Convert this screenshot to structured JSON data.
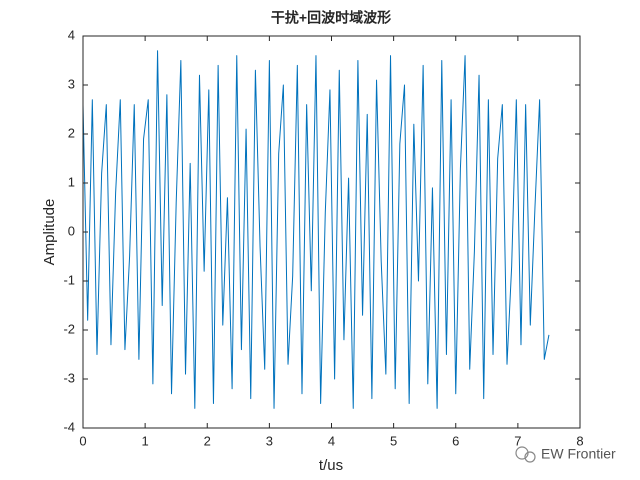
{
  "chart_data": {
    "type": "line",
    "title": "干扰+回波时域波形",
    "xlabel": "t/us",
    "ylabel": "Amplitude",
    "color": "#0072bd",
    "x": [
      0,
      0.075,
      0.15,
      0.225,
      0.3,
      0.375,
      0.45,
      0.525,
      0.6,
      0.675,
      0.75,
      0.825,
      0.9,
      0.975,
      1.05,
      1.125,
      1.2,
      1.275,
      1.35,
      1.425,
      1.5,
      1.575,
      1.65,
      1.725,
      1.8,
      1.875,
      1.95,
      2.025,
      2.1,
      2.175,
      2.25,
      2.325,
      2.4,
      2.475,
      2.55,
      2.625,
      2.7,
      2.775,
      2.85,
      2.925,
      3,
      3.075,
      3.15,
      3.225,
      3.3,
      3.375,
      3.45,
      3.525,
      3.6,
      3.675,
      3.75,
      3.825,
      3.9,
      3.975,
      4.05,
      4.125,
      4.2,
      4.275,
      4.35,
      4.425,
      4.5,
      4.575,
      4.65,
      4.725,
      4.8,
      4.875,
      4.95,
      5.025,
      5.1,
      5.175,
      5.25,
      5.325,
      5.4,
      5.475,
      5.55,
      5.625,
      5.7,
      5.775,
      5.85,
      5.925,
      6,
      6.075,
      6.15,
      6.225,
      6.3,
      6.375,
      6.45,
      6.525,
      6.6,
      6.675,
      6.75,
      6.825,
      6.9,
      6.975,
      7.05,
      7.125,
      7.2,
      7.275,
      7.35,
      7.425,
      7.5
    ],
    "values": [
      2.6,
      -1.8,
      2.7,
      -2.5,
      1.2,
      2.6,
      -2.3,
      0.8,
      2.7,
      -2.4,
      -0.5,
      2.6,
      -2.6,
      1.9,
      2.7,
      -3.1,
      3.7,
      -1.5,
      2.8,
      -3.3,
      0.6,
      3.5,
      -2.9,
      1.4,
      -3.6,
      3.2,
      -0.8,
      2.9,
      -3.5,
      3.4,
      -1.9,
      0.7,
      -3.2,
      3.6,
      -2.4,
      2.1,
      -3.4,
      3.3,
      -0.3,
      -2.8,
      3.5,
      -3.6,
      1.6,
      3.0,
      -2.7,
      -0.9,
      3.4,
      -3.3,
      2.6,
      -1.2,
      3.6,
      -3.5,
      0.4,
      2.9,
      -3.0,
      3.3,
      -2.2,
      1.1,
      -3.6,
      3.5,
      -1.7,
      2.4,
      -3.4,
      3.1,
      -0.6,
      -2.9,
      3.6,
      -3.2,
      1.8,
      3.0,
      -3.5,
      2.2,
      -1.0,
      3.4,
      -3.1,
      0.9,
      -3.6,
      3.5,
      -2.5,
      2.7,
      -3.3,
      1.3,
      3.6,
      -2.8,
      -0.4,
      3.2,
      -3.4,
      2.7,
      -2.5,
      1.5,
      2.6,
      -2.7,
      -0.7,
      2.7,
      -2.3,
      2.6,
      -1.9,
      0.5,
      2.7,
      -2.6,
      -2.1
    ],
    "xlim": [
      0,
      8
    ],
    "xticks": [
      0,
      1,
      2,
      3,
      4,
      5,
      6,
      7,
      8
    ],
    "ylim": [
      -4,
      4
    ],
    "yticks": [
      -4,
      -3,
      -2,
      -1,
      0,
      1,
      2,
      3,
      4
    ],
    "watermark": "EW Frontier"
  }
}
